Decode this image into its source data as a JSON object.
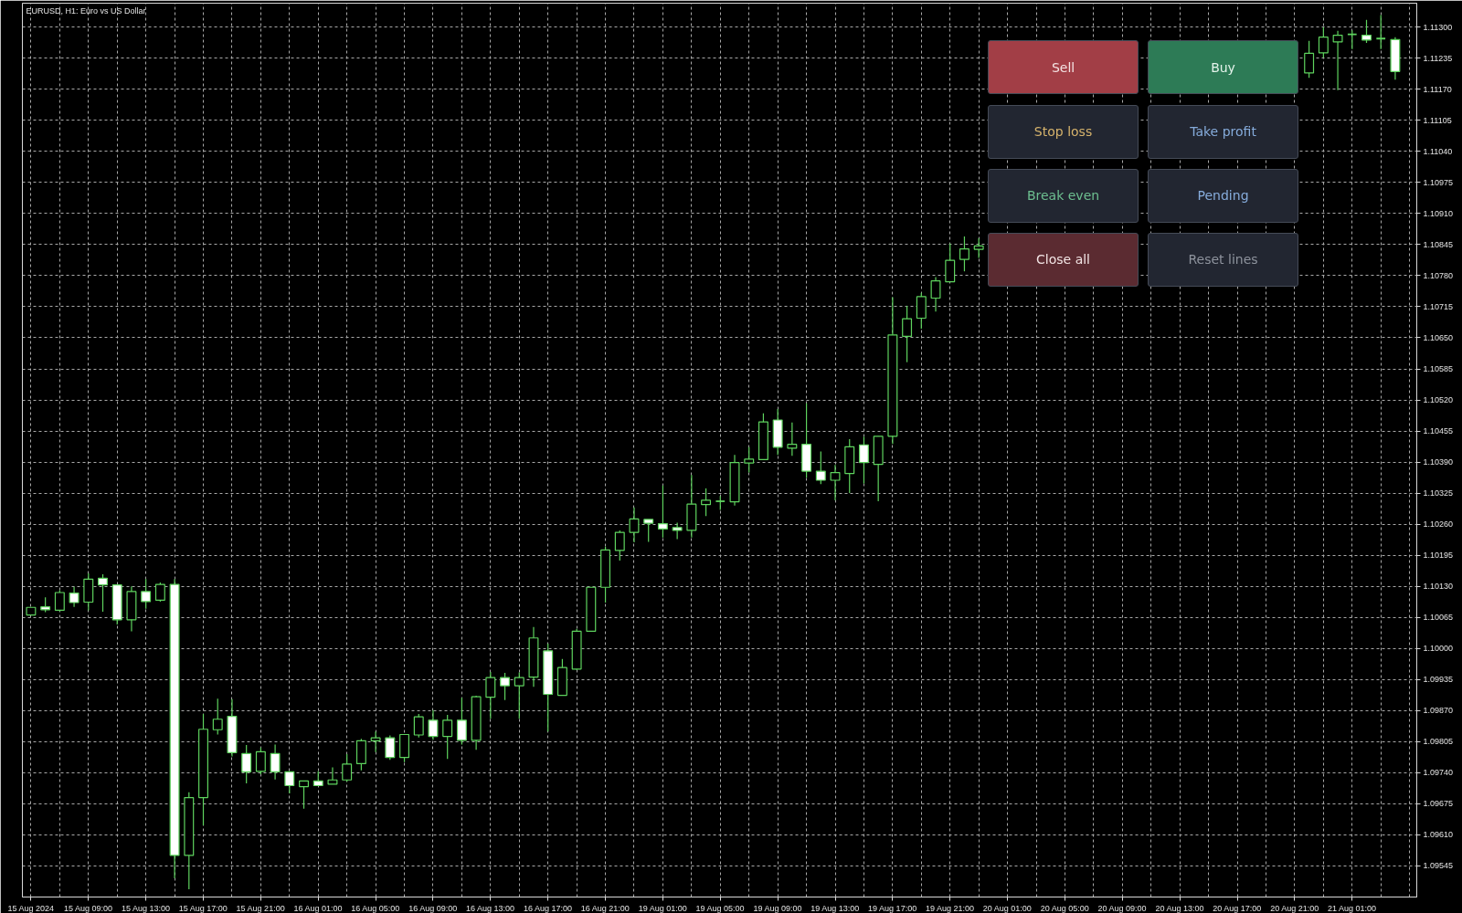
{
  "chart_data": {
    "type": "candlestick",
    "title": "EURUSD, H1: Euro vs US Dollar",
    "categories": [
      "15 Aug 2024",
      null,
      null,
      null,
      "15 Aug 09:00",
      null,
      null,
      null,
      "15 Aug 13:00",
      null,
      null,
      null,
      "15 Aug 17:00",
      null,
      null,
      null,
      "15 Aug 21:00",
      null,
      null,
      null,
      "16 Aug 01:00",
      null,
      null,
      null,
      "16 Aug 05:00",
      null,
      null,
      null,
      "16 Aug 09:00",
      null,
      null,
      null,
      "16 Aug 13:00",
      null,
      null,
      null,
      "16 Aug 17:00",
      null,
      null,
      null,
      "16 Aug 21:00",
      null,
      null,
      null,
      "19 Aug 01:00",
      null,
      null,
      null,
      "19 Aug 05:00",
      null,
      null,
      null,
      "19 Aug 09:00",
      null,
      null,
      null,
      "19 Aug 13:00",
      null,
      null,
      null,
      "19 Aug 17:00",
      null,
      null,
      null,
      "19 Aug 21:00",
      null,
      null,
      null,
      "20 Aug 01:00",
      null,
      null,
      null,
      "20 Aug 05:00",
      null,
      null,
      null,
      "20 Aug 09:00",
      null,
      null,
      null,
      "20 Aug 13:00",
      null,
      null,
      null,
      "20 Aug 17:00",
      null,
      null,
      null,
      "20 Aug 21:00",
      null,
      null,
      null,
      "21 Aug 01:00",
      null,
      null,
      null
    ],
    "ohlc": [
      [
        1.1007,
        1.10086,
        1.1007,
        1.10086
      ],
      [
        1.10087,
        1.10107,
        1.10076,
        1.10081
      ],
      [
        1.1008,
        1.10122,
        1.10078,
        1.10117
      ],
      [
        1.10116,
        1.10129,
        1.10087,
        1.10096
      ],
      [
        1.10097,
        1.10157,
        1.1008,
        1.10145
      ],
      [
        1.10147,
        1.10155,
        1.10077,
        1.10133
      ],
      [
        1.10133,
        1.10134,
        1.1005,
        1.1006
      ],
      [
        1.1006,
        1.1013,
        1.10036,
        1.10119
      ],
      [
        1.10119,
        1.10145,
        1.10083,
        1.10098
      ],
      [
        1.10101,
        1.10138,
        1.10098,
        1.10134
      ],
      [
        1.10134,
        1.10145,
        1.09519,
        1.09567
      ],
      [
        1.09567,
        1.09699,
        1.09496,
        1.09688
      ],
      [
        1.09688,
        1.09863,
        1.0963,
        1.09831
      ],
      [
        1.0983,
        1.09895,
        1.0982,
        1.09852
      ],
      [
        1.09858,
        1.09894,
        1.09774,
        1.09782
      ],
      [
        1.0978,
        1.09798,
        1.09718,
        1.09742
      ],
      [
        1.09743,
        1.09793,
        1.09737,
        1.09784
      ],
      [
        1.0978,
        1.09799,
        1.09726,
        1.09742
      ],
      [
        1.09742,
        1.09743,
        1.09697,
        1.09713
      ],
      [
        1.09711,
        1.09723,
        1.09665,
        1.09723
      ],
      [
        1.09723,
        1.09743,
        1.09713,
        1.09713
      ],
      [
        1.09716,
        1.09751,
        1.09716,
        1.09725
      ],
      [
        1.09725,
        1.09779,
        1.09721,
        1.09758
      ],
      [
        1.09759,
        1.09811,
        1.09745,
        1.09807
      ],
      [
        1.09807,
        1.09826,
        1.09783,
        1.09813
      ],
      [
        1.09813,
        1.09818,
        1.09767,
        1.09772
      ],
      [
        1.09772,
        1.0982,
        1.09762,
        1.0982
      ],
      [
        1.09819,
        1.09863,
        1.09814,
        1.09857
      ],
      [
        1.0985,
        1.09871,
        1.09809,
        1.09816
      ],
      [
        1.09816,
        1.09861,
        1.09769,
        1.0985
      ],
      [
        1.0985,
        1.09897,
        1.09799,
        1.09808
      ],
      [
        1.09808,
        1.09901,
        1.09788,
        1.09899
      ],
      [
        1.09898,
        1.09951,
        1.09853,
        1.09939
      ],
      [
        1.09939,
        1.09949,
        1.09892,
        1.09922
      ],
      [
        1.09922,
        1.0995,
        1.09853,
        1.09939
      ],
      [
        1.0994,
        1.10045,
        1.0992,
        1.10022
      ],
      [
        1.09995,
        1.1001,
        1.09826,
        1.09904
      ],
      [
        1.09902,
        1.09978,
        1.09902,
        1.0996
      ],
      [
        1.09957,
        1.10041,
        1.09955,
        1.10036
      ],
      [
        1.10036,
        1.10128,
        1.10036,
        1.10128
      ],
      [
        1.10128,
        1.10213,
        1.10096,
        1.10206
      ],
      [
        1.10205,
        1.10247,
        1.10184,
        1.10243
      ],
      [
        1.10243,
        1.10295,
        1.10222,
        1.10271
      ],
      [
        1.1027,
        1.1027,
        1.10223,
        1.10262
      ],
      [
        1.10261,
        1.10341,
        1.10232,
        1.1025
      ],
      [
        1.10253,
        1.10263,
        1.10229,
        1.10247
      ],
      [
        1.10247,
        1.10363,
        1.10232,
        1.10302
      ],
      [
        1.10301,
        1.10335,
        1.10277,
        1.1031
      ],
      [
        1.10308,
        1.10319,
        1.1029,
        1.10308
      ],
      [
        1.10307,
        1.10405,
        1.10299,
        1.10389
      ],
      [
        1.10388,
        1.10421,
        1.10368,
        1.10396
      ],
      [
        1.10395,
        1.10492,
        1.10395,
        1.10474
      ],
      [
        1.10478,
        1.10501,
        1.10405,
        1.10421
      ],
      [
        1.10419,
        1.10473,
        1.10403,
        1.10427
      ],
      [
        1.10427,
        1.10513,
        1.10357,
        1.10371
      ],
      [
        1.10371,
        1.10412,
        1.10344,
        1.10352
      ],
      [
        1.10352,
        1.10384,
        1.1031,
        1.10368
      ],
      [
        1.10366,
        1.10438,
        1.10325,
        1.10422
      ],
      [
        1.10426,
        1.10443,
        1.10345,
        1.10389
      ],
      [
        1.10385,
        1.10444,
        1.10308,
        1.10444
      ],
      [
        1.10444,
        1.10735,
        1.10428,
        1.10656
      ],
      [
        1.10653,
        1.10717,
        1.10599,
        1.1069
      ],
      [
        1.10691,
        1.10744,
        1.10669,
        1.10736
      ],
      [
        1.10733,
        1.10777,
        1.10705,
        1.10769
      ],
      [
        1.10767,
        1.10847,
        1.10767,
        1.10812
      ],
      [
        1.10814,
        1.10862,
        1.10789,
        1.10836
      ],
      [
        1.10835,
        1.10858,
        1.10817,
        1.10842
      ],
      null,
      null,
      null,
      null,
      null,
      null,
      null,
      null,
      null,
      null,
      null,
      null,
      null,
      null,
      null,
      null,
      null,
      null,
      null,
      null,
      null,
      null,
      [
        1.11204,
        1.11271,
        1.11194,
        1.11245
      ],
      [
        1.11246,
        1.113,
        1.11236,
        1.11279
      ],
      [
        1.11269,
        1.11292,
        1.11168,
        1.11283
      ],
      [
        1.11285,
        1.11293,
        1.11254,
        1.11285
      ],
      [
        1.11283,
        1.11315,
        1.11267,
        1.11273
      ],
      [
        1.11276,
        1.11325,
        1.11254,
        1.11276
      ],
      [
        1.11274,
        1.11279,
        1.1119,
        1.11207
      ]
    ],
    "color": "#5ed35e",
    "colors": [
      "#000000",
      "#ffffff",
      "#000000",
      "#ffffff",
      "#000000",
      "#ffffff",
      "#ffffff",
      "#000000",
      "#ffffff",
      "#000000",
      "#ffffff",
      "#000000",
      "#000000",
      "#000000",
      "#ffffff",
      "#ffffff",
      "#000000",
      "#ffffff",
      "#ffffff",
      "#000000",
      "#ffffff",
      "#000000",
      "#000000",
      "#000000",
      "#000000",
      "#ffffff",
      "#000000",
      "#000000",
      "#ffffff",
      "#000000",
      "#ffffff",
      "#000000",
      "#000000",
      "#ffffff",
      "#000000",
      "#000000",
      "#ffffff",
      "#000000",
      "#000000",
      "#000000",
      "#000000",
      "#000000",
      "#000000",
      "#ffffff",
      "#ffffff",
      "#ffffff",
      "#000000",
      "#000000",
      "#5ed35e",
      "#000000",
      "#000000",
      "#000000",
      "#ffffff",
      "#000000",
      "#ffffff",
      "#ffffff",
      "#000000",
      "#000000",
      "#ffffff",
      "#000000",
      "#000000",
      "#000000",
      "#000000",
      "#000000",
      "#000000",
      "#000000",
      "#000000",
      null,
      null,
      null,
      null,
      null,
      null,
      null,
      null,
      null,
      null,
      null,
      null,
      null,
      null,
      null,
      null,
      null,
      null,
      null,
      null,
      null,
      null,
      "#000000",
      "#000000",
      "#000000",
      "#5ed35e",
      "#ffffff",
      "#5ed35e",
      "#ffffff"
    ],
    "ylim": [
      1.0948,
      1.1135
    ],
    "yticks": [
      1.09545,
      {
        "value": 1.0961,
        "label": "1.09610"
      },
      1.09675,
      {
        "value": 1.0974,
        "label": "1.09740"
      },
      1.09805,
      {
        "value": 1.0987,
        "label": "1.09870"
      },
      1.09935,
      {
        "value": 1.1,
        "label": "1.10000"
      },
      1.10065,
      {
        "value": 1.1013,
        "label": "1.10130"
      },
      1.10195,
      {
        "value": 1.1026,
        "label": "1.10260"
      },
      1.10325,
      {
        "value": 1.1039,
        "label": "1.10390"
      },
      1.10455,
      {
        "value": 1.1052,
        "label": "1.10520"
      },
      1.10585,
      {
        "value": 1.1065,
        "label": "1.10650"
      },
      1.10715,
      {
        "value": 1.1078,
        "label": "1.10780"
      },
      1.10845,
      {
        "value": 1.1091,
        "label": "1.10910"
      },
      1.10975,
      {
        "value": 1.1104,
        "label": "1.11040"
      },
      1.11105,
      {
        "value": 1.1117,
        "label": "1.11170"
      },
      1.11235,
      {
        "value": 1.113,
        "label": "1.11300"
      }
    ],
    "grid": true,
    "annotations": [
      "Sell",
      "Buy",
      "Stop loss",
      "Take profit",
      "Break even",
      "Pending",
      "Close all",
      "Reset lines"
    ]
  }
}
